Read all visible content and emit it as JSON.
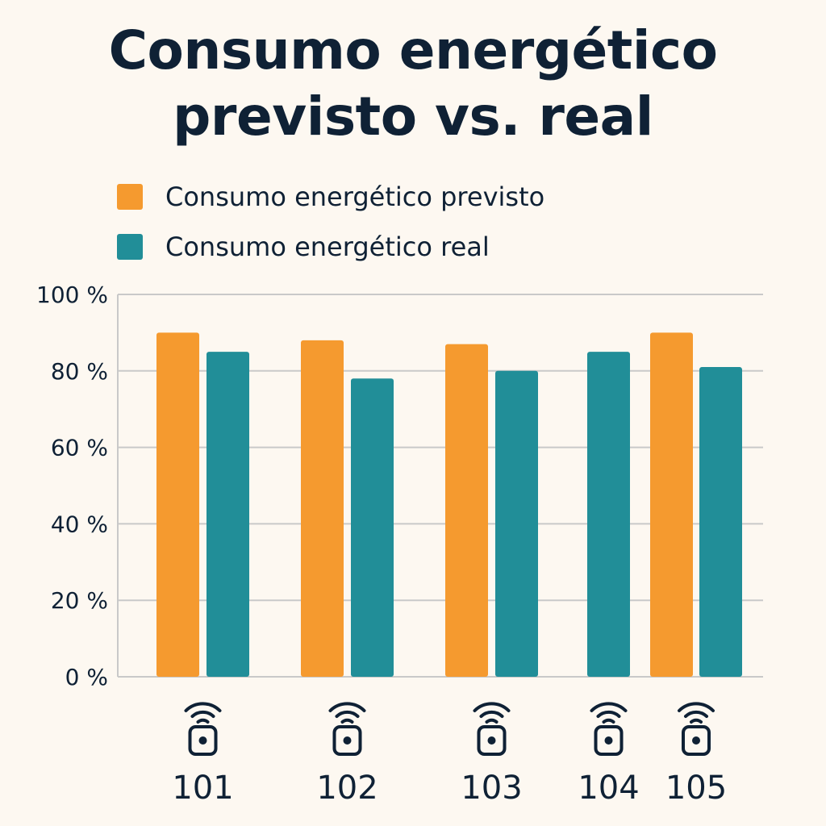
{
  "colors": {
    "background": "#fdf8f1",
    "text": "#0f2135",
    "grid": "#c9c9c9",
    "previsto": "#f59a2f",
    "real": "#218e98"
  },
  "chart_data": {
    "type": "bar",
    "title_lines": [
      "Consumo energético",
      "previsto vs. real"
    ],
    "categories": [
      "101",
      "102",
      "103",
      "104",
      "105"
    ],
    "category_icon": "sensor-icon",
    "series": [
      {
        "name": "Consumo energético previsto",
        "values": [
          90,
          88,
          87,
          null,
          90
        ]
      },
      {
        "name": "Consumo energético real",
        "values": [
          85,
          78,
          80,
          85,
          81
        ]
      }
    ],
    "ylim": [
      0,
      100
    ],
    "yticks": [
      0,
      20,
      40,
      60,
      80,
      100
    ],
    "ytick_labels": [
      "0 %",
      "20 %",
      "40 %",
      "60 %",
      "80 %",
      "100 %"
    ],
    "grid": true,
    "legend_position": "top-left"
  }
}
